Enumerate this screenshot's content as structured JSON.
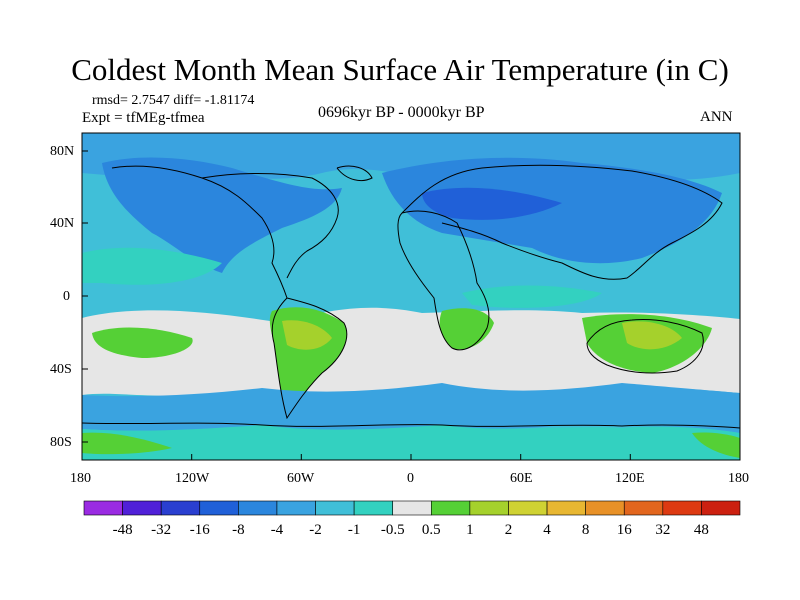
{
  "title": "Coldest Month Mean Surface Air Temperature (in C)",
  "stats": "rmsd= 2.7547  diff= -1.81174",
  "experiment": "Expt = tfMEg-tfmea",
  "period": "0696kyr BP - 0000kyr BP",
  "season": "ANN",
  "x_ticks": [
    "180",
    "120W",
    "60W",
    "0",
    "60E",
    "120E",
    "180"
  ],
  "y_ticks": [
    "80N",
    "40N",
    "0",
    "40S",
    "80S"
  ],
  "colorbar": {
    "labels": [
      "-48",
      "-32",
      "-16",
      "-8",
      "-4",
      "-2",
      "-1",
      "-0.5",
      "0.5",
      "1",
      "2",
      "4",
      "8",
      "16",
      "32",
      "48"
    ],
    "colors": [
      "#9a2be2",
      "#5020d8",
      "#2a3fd0",
      "#2060d8",
      "#2b86dd",
      "#3aa3e0",
      "#40bfd8",
      "#33d1c0",
      "#e6e6e6",
      "#55d036",
      "#a5d12c",
      "#cfd233",
      "#e8b732",
      "#e89127",
      "#e2661e",
      "#dd3a12",
      "#cc2010"
    ]
  },
  "map_colors": {
    "ocean_base": "#40bfd8",
    "cold_blue": "#2b86dd",
    "mid_blue": "#3aa3e0",
    "teal": "#33d1c0",
    "neutral": "#e6e6e6",
    "green": "#55d036",
    "yellow_green": "#a5d12c",
    "coast": "#000000"
  }
}
